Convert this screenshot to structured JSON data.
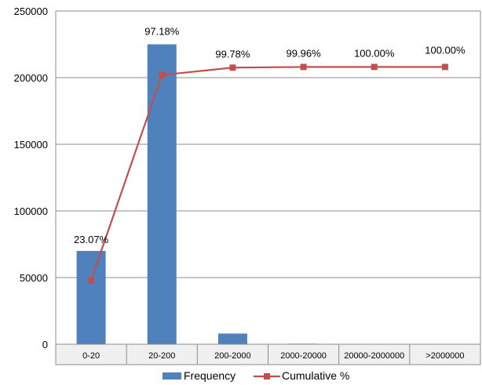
{
  "chart_data": {
    "type": "bar",
    "categories": [
      "0-20",
      "20-200",
      "200-2000",
      "2000-20000",
      "20000-2000000",
      ">2000000"
    ],
    "ylim": [
      0,
      250000
    ],
    "yticks": [
      0,
      50000,
      100000,
      150000,
      200000,
      250000
    ],
    "grid": true,
    "legend_position": "bottom",
    "series": [
      {
        "name": "Frequency",
        "kind": "bar",
        "color": "#4f81bd",
        "values": [
          70000,
          225000,
          8000,
          400,
          20,
          0
        ]
      },
      {
        "name": "Cumulative %",
        "kind": "line",
        "color": "#c0504d",
        "axis_values": [
          48000,
          202000,
          207500,
          208000,
          208000,
          208000
        ],
        "labels": [
          "23.07%",
          "97.18%",
          "99.78%",
          "99.96%",
          "100.00%",
          "100.00%"
        ]
      }
    ]
  }
}
